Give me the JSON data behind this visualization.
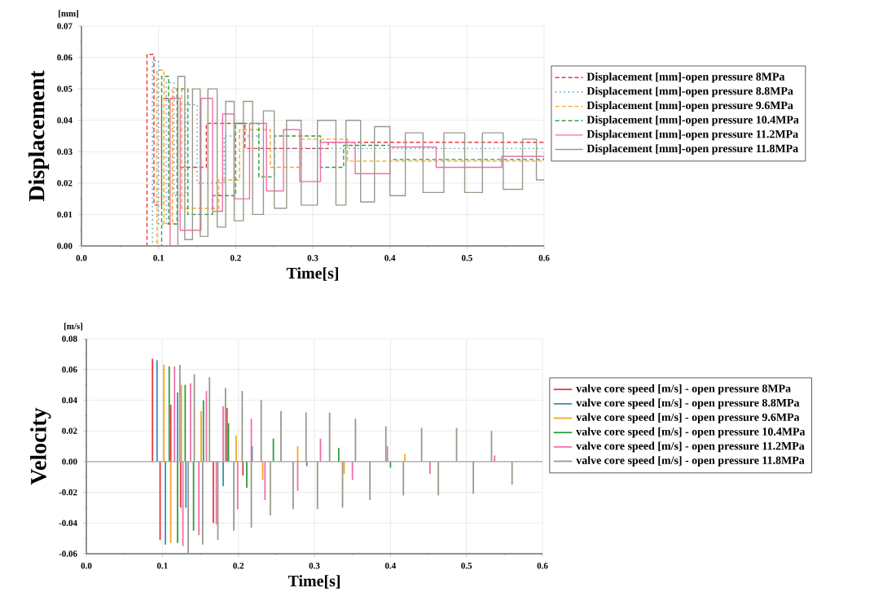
{
  "chart_data": [
    {
      "type": "step",
      "xlabel": "Time[s]",
      "ylabel": "Displacement",
      "annotations": [
        "[mm]"
      ],
      "grid": true,
      "legend": "right",
      "xlim": [
        0,
        0.6
      ],
      "ylim": [
        0,
        0.07
      ],
      "xticks": [
        {
          "value": 0,
          "label": "0.0"
        },
        {
          "value": 0.1,
          "label": "0.1"
        },
        {
          "value": 0.2,
          "label": "0.2"
        },
        {
          "value": 0.3,
          "label": "0.3"
        },
        {
          "value": 0.4,
          "label": "0.4"
        },
        {
          "value": 0.5,
          "label": "0.5"
        },
        {
          "value": 0.6,
          "label": "0.6"
        }
      ],
      "yticks": [
        {
          "value": 0,
          "label": "0.00"
        },
        {
          "value": 0.01,
          "label": "0.01"
        },
        {
          "value": 0.02,
          "label": "0.02"
        },
        {
          "value": 0.03,
          "label": "0.03"
        },
        {
          "value": 0.04,
          "label": "0.04"
        },
        {
          "value": 0.05,
          "label": "0.05"
        },
        {
          "value": 0.06,
          "label": "0.06"
        },
        {
          "value": 0.07,
          "label": "0.07"
        }
      ],
      "series": [
        {
          "name": "Displacement [mm]-open pressure 8MPa",
          "color": "#e8383d",
          "line_style": "dashed",
          "x": [
            0,
            0.085,
            0.094,
            0.104,
            0.125,
            0.162,
            0.212,
            0.32,
            0.6
          ],
          "values": [
            0,
            0.061,
            0.013,
            0.047,
            0.025,
            0.039,
            0.031,
            0.033,
            0.033
          ]
        },
        {
          "name": "Displacement [mm]-open pressure 8.8MPa",
          "color": "#3a8fb7",
          "line_style": "dotted",
          "x": [
            0,
            0.092,
            0.1,
            0.11,
            0.12,
            0.135,
            0.15,
            0.185,
            0.23,
            0.6
          ],
          "values": [
            0,
            0.059,
            0.007,
            0.052,
            0.016,
            0.045,
            0.02,
            0.035,
            0.031,
            0.031
          ]
        },
        {
          "name": "Displacement [mm]-open pressure 9.6MPa",
          "color": "#f5a623",
          "line_style": "dashed",
          "x": [
            0,
            0.098,
            0.107,
            0.118,
            0.13,
            0.178,
            0.205,
            0.245,
            0.285,
            0.345,
            0.6
          ],
          "values": [
            0,
            0.056,
            0.007,
            0.05,
            0.012,
            0.021,
            0.037,
            0.025,
            0.034,
            0.027,
            0.03
          ]
        },
        {
          "name": "Displacement [mm]-open pressure 10.4MPa",
          "color": "#2e9e3e",
          "line_style": "dashed",
          "x": [
            0,
            0.104,
            0.113,
            0.124,
            0.138,
            0.17,
            0.2,
            0.23,
            0.25,
            0.31,
            0.34,
            0.4,
            0.6
          ],
          "values": [
            0,
            0.054,
            0.007,
            0.05,
            0.01,
            0.016,
            0.039,
            0.022,
            0.035,
            0.025,
            0.032,
            0.0275,
            0.0275
          ]
        },
        {
          "name": "Displacement [mm]-open pressure 11.2MPa",
          "color": "#f06ea9",
          "line_style": "solid",
          "x": [
            0,
            0.115,
            0.128,
            0.155,
            0.17,
            0.183,
            0.198,
            0.218,
            0.24,
            0.262,
            0.283,
            0.31,
            0.355,
            0.4,
            0.46,
            0.545,
            0.6
          ],
          "values": [
            0,
            0.047,
            0.005,
            0.047,
            0.011,
            0.042,
            0.015,
            0.039,
            0.0175,
            0.037,
            0.0205,
            0.033,
            0.023,
            0.0315,
            0.025,
            0.0285,
            0.0285
          ]
        },
        {
          "name": "Displacement [mm]-open pressure 11.8MPa",
          "color": "#9a9a8a",
          "line_style": "solid",
          "x": [
            0,
            0.125,
            0.134,
            0.144,
            0.154,
            0.164,
            0.176,
            0.187,
            0.198,
            0.21,
            0.222,
            0.236,
            0.25,
            0.266,
            0.285,
            0.306,
            0.33,
            0.343,
            0.362,
            0.38,
            0.4,
            0.42,
            0.443,
            0.47,
            0.497,
            0.52,
            0.547,
            0.572,
            0.59,
            0.6
          ],
          "values": [
            0,
            0.054,
            0.002,
            0.05,
            0.003,
            0.05,
            0.006,
            0.046,
            0.008,
            0.046,
            0.01,
            0.043,
            0.012,
            0.04,
            0.013,
            0.04,
            0.013,
            0.04,
            0.014,
            0.038,
            0.016,
            0.036,
            0.017,
            0.036,
            0.017,
            0.036,
            0.018,
            0.034,
            0.021,
            0.021
          ]
        }
      ]
    },
    {
      "type": "bar",
      "xlabel": "Time[s]",
      "ylabel": "Velocity",
      "annotations": [
        "[m/s]"
      ],
      "grid": true,
      "legend": "right",
      "xlim": [
        0,
        0.6
      ],
      "ylim": [
        -0.06,
        0.08
      ],
      "xticks": [
        {
          "value": 0,
          "label": "0.0"
        },
        {
          "value": 0.1,
          "label": "0.1"
        },
        {
          "value": 0.2,
          "label": "0.2"
        },
        {
          "value": 0.3,
          "label": "0.3"
        },
        {
          "value": 0.4,
          "label": "0.4"
        },
        {
          "value": 0.5,
          "label": "0.5"
        },
        {
          "value": 0.6,
          "label": "0.6"
        }
      ],
      "yticks": [
        {
          "value": -0.06,
          "label": "-0.06"
        },
        {
          "value": -0.04,
          "label": "-0.04"
        },
        {
          "value": -0.02,
          "label": "-0.02"
        },
        {
          "value": 0,
          "label": "0.00"
        },
        {
          "value": 0.02,
          "label": "0.02"
        },
        {
          "value": 0.04,
          "label": "0.04"
        },
        {
          "value": 0.06,
          "label": "0.06"
        },
        {
          "value": 0.08,
          "label": "0.08"
        }
      ],
      "series": [
        {
          "name": "valve core speed [m/s] - open pressure 8MPa",
          "color": "#e8383d",
          "x": [
            0.087,
            0.097,
            0.111,
            0.124,
            0.167,
            0.185,
            0.206
          ],
          "values": [
            0.067,
            -0.051,
            0.037,
            -0.03,
            -0.04,
            0.035,
            -0.009
          ]
        },
        {
          "name": "valve core speed [m/s] - open pressure 8.8MPa",
          "color": "#3a8fb7",
          "x": [
            0.093,
            0.104,
            0.12,
            0.131,
            0.18,
            0.218,
            0.29
          ],
          "values": [
            0.066,
            -0.054,
            0.045,
            -0.03,
            -0.016,
            0.01,
            -0.003
          ]
        },
        {
          "name": "valve core speed [m/s] - open pressure 9.6MPa",
          "color": "#f5a623",
          "x": [
            0.102,
            0.111,
            0.125,
            0.151,
            0.197,
            0.232,
            0.278,
            0.339,
            0.419
          ],
          "values": [
            0.063,
            -0.053,
            0.05,
            0.033,
            0.017,
            -0.012,
            0.01,
            -0.008,
            0.005
          ]
        },
        {
          "name": "valve core speed [m/s] - open pressure 10.4MPa",
          "color": "#2e9e3e",
          "x": [
            0.109,
            0.12,
            0.13,
            0.141,
            0.154,
            0.187,
            0.211,
            0.246,
            0.332,
            0.4
          ],
          "values": [
            0.062,
            -0.053,
            0.05,
            -0.045,
            0.04,
            0.025,
            -0.017,
            0.015,
            0.009,
            -0.004
          ]
        },
        {
          "name": "valve core speed [m/s] - open pressure 11.2MPa",
          "color": "#f06ea9",
          "x": [
            0.116,
            0.127,
            0.137,
            0.148,
            0.158,
            0.171,
            0.18,
            0.199,
            0.217,
            0.235,
            0.278,
            0.308,
            0.35,
            0.396,
            0.452,
            0.537
          ],
          "values": [
            0.062,
            -0.055,
            0.051,
            -0.048,
            0.046,
            -0.041,
            0.036,
            -0.031,
            0.028,
            -0.025,
            -0.019,
            0.015,
            -0.012,
            0.01,
            -0.008,
            0.004
          ]
        },
        {
          "name": "valve core speed [m/s] - open pressure 11.8MPa",
          "color": "#9a9a8a",
          "x": [
            0.123,
            0.134,
            0.142,
            0.153,
            0.162,
            0.173,
            0.183,
            0.194,
            0.205,
            0.217,
            0.23,
            0.242,
            0.256,
            0.272,
            0.289,
            0.304,
            0.32,
            0.337,
            0.354,
            0.373,
            0.394,
            0.417,
            0.441,
            0.463,
            0.487,
            0.509,
            0.533,
            0.56
          ],
          "values": [
            0.063,
            -0.06,
            0.057,
            -0.054,
            0.055,
            -0.051,
            0.048,
            -0.045,
            0.046,
            -0.043,
            0.04,
            -0.035,
            0.033,
            -0.031,
            0.032,
            -0.031,
            0.032,
            -0.03,
            0.028,
            -0.025,
            0.023,
            -0.022,
            0.022,
            -0.022,
            0.022,
            -0.021,
            0.02,
            -0.015
          ]
        }
      ]
    }
  ]
}
